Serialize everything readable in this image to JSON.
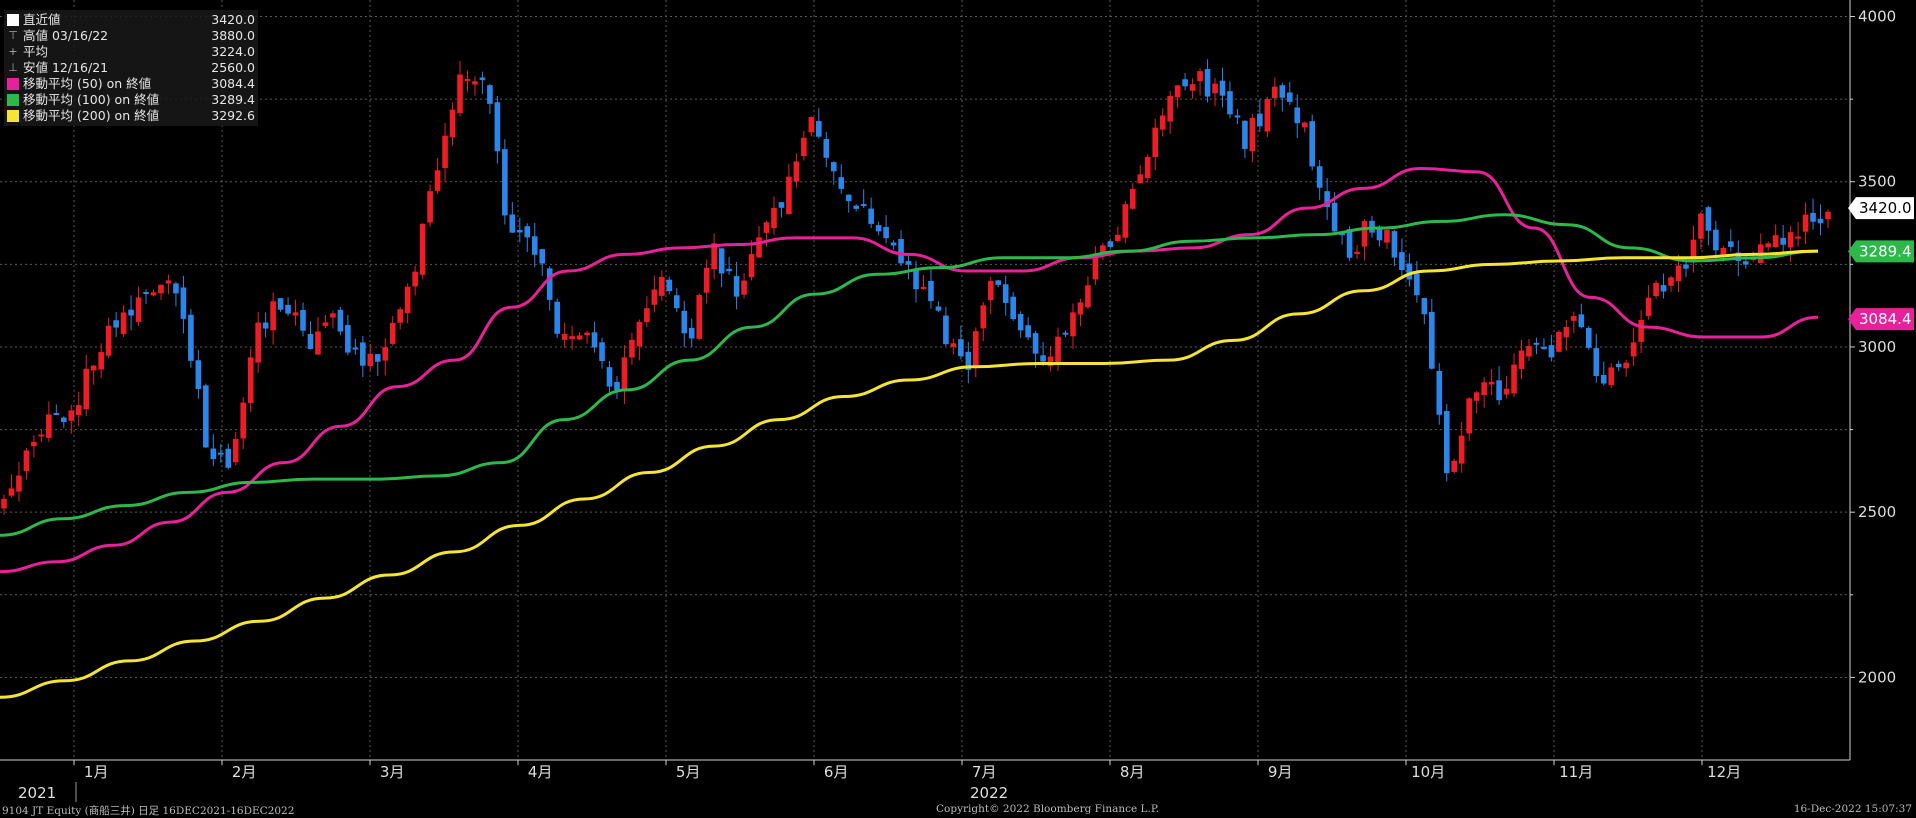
{
  "legend": [
    {
      "marker": "box",
      "color": "#ffffff",
      "label": "直近値",
      "value": "3420.0"
    },
    {
      "marker": "symbol",
      "symbol": "⊤",
      "label": "高値 03/16/22",
      "value": "3880.0"
    },
    {
      "marker": "symbol",
      "symbol": "+",
      "label": "平均",
      "value": "3224.0"
    },
    {
      "marker": "symbol",
      "symbol": "⊥",
      "label": "安値 12/16/21",
      "value": "2560.0"
    },
    {
      "marker": "box",
      "color": "#e8209a",
      "label": "移動平均 (50) on 終値",
      "value": "3084.4"
    },
    {
      "marker": "box",
      "color": "#2db84a",
      "label": "移動平均 (100) on 終値",
      "value": "3289.4"
    },
    {
      "marker": "box",
      "color": "#f5e531",
      "label": "移動平均 (200) on 終値",
      "value": "3292.6"
    }
  ],
  "footer": {
    "left": "9104 JT Equity (商船三井)  日足 16DEC2021-16DEC2022",
    "center": "Copyright© 2022 Bloomberg Finance L.P.",
    "right": "16-Dec-2022 15:07:37"
  },
  "chart_data": {
    "type": "candlestick",
    "x_range": [
      "2021-12-16",
      "2022-12-16"
    ],
    "ylim": [
      1750,
      4050
    ],
    "yticks": [
      2000,
      2500,
      3000,
      3500,
      4000
    ],
    "grid": true,
    "up_color": "#ee1c25",
    "down_color": "#2a86e8",
    "year_labels": [
      {
        "label": "2021",
        "month_index": 0
      },
      {
        "label": "2022",
        "month_index": 6
      }
    ],
    "month_ticks": [
      "1月",
      "2月",
      "3月",
      "4月",
      "5月",
      "6月",
      "7月",
      "8月",
      "9月",
      "10月",
      "11月",
      "12月"
    ],
    "price_tags": [
      {
        "value": 3420.0,
        "label": "3420.0",
        "bg": "#ffffff",
        "fg": "#000000"
      },
      {
        "value": 3289.4,
        "label": "3289.4",
        "bg": "#2db84a",
        "fg": "#ffffff"
      },
      {
        "value": 3084.4,
        "label": "3084.4",
        "bg": "#e8209a",
        "fg": "#ffffff"
      }
    ],
    "close_anchors": [
      2560,
      2700,
      2780,
      2850,
      3050,
      3100,
      3190,
      3150,
      2700,
      2640,
      3050,
      3150,
      3000,
      3080,
      2960,
      3000,
      3160,
      3500,
      3850,
      3790,
      3320,
      3310,
      3000,
      3080,
      2850,
      3050,
      3250,
      3000,
      3300,
      3150,
      3350,
      3500,
      3700,
      3480,
      3420,
      3300,
      3200,
      3060,
      2930,
      3220,
      3070,
      2980,
      3060,
      3250,
      3350,
      3560,
      3790,
      3820,
      3760,
      3620,
      3760,
      3720,
      3500,
      3270,
      3380,
      3280,
      3100,
      2600,
      2900,
      2850,
      3000,
      2980,
      3100,
      2900,
      2950,
      3150,
      3200,
      3380,
      3280,
      3270,
      3320,
      3360,
      3420
    ],
    "moving_averages": [
      {
        "name": "移動平均 (50) on 終値",
        "color": "#e8209a",
        "values": [
          2320,
          2350,
          2400,
          2470,
          2560,
          2650,
          2760,
          2880,
          2960,
          3120,
          3230,
          3280,
          3300,
          3310,
          3330,
          3330,
          3280,
          3230,
          3230,
          3270,
          3290,
          3300,
          3340,
          3420,
          3480,
          3540,
          3530,
          3360,
          3150,
          3060,
          3030,
          3030,
          3090
        ]
      },
      {
        "name": "移動平均 (100) on 終値",
        "color": "#2db84a",
        "values": [
          2430,
          2480,
          2520,
          2560,
          2590,
          2600,
          2600,
          2610,
          2650,
          2780,
          2870,
          2960,
          3060,
          3160,
          3220,
          3240,
          3270,
          3270,
          3290,
          3320,
          3330,
          3340,
          3360,
          3380,
          3400,
          3370,
          3300,
          3260,
          3270,
          3290
        ]
      },
      {
        "name": "移動平均 (200) on 終値",
        "color": "#f5e531",
        "values": [
          1940,
          1990,
          2050,
          2110,
          2170,
          2240,
          2310,
          2380,
          2460,
          2540,
          2620,
          2700,
          2780,
          2850,
          2900,
          2940,
          2950,
          2950,
          2960,
          3020,
          3100,
          3170,
          3230,
          3250,
          3260,
          3270,
          3270,
          3280,
          3290
        ]
      }
    ]
  }
}
